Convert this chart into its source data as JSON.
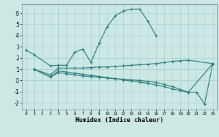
{
  "xlabel": "Humidex (Indice chaleur)",
  "bg_color": "#cce8e5",
  "line_color": "#2a7d7d",
  "grid_color": "#aacfcc",
  "xlim": [
    -0.5,
    23.5
  ],
  "ylim": [
    -2.6,
    6.8
  ],
  "yticks": [
    -2,
    -1,
    0,
    1,
    2,
    3,
    4,
    5,
    6
  ],
  "xticks": [
    0,
    1,
    2,
    3,
    4,
    5,
    6,
    7,
    8,
    9,
    10,
    11,
    12,
    13,
    14,
    15,
    16,
    17,
    18,
    19,
    20,
    21,
    22,
    23
  ],
  "lines": [
    {
      "x": [
        0,
        1,
        3,
        4,
        5,
        6,
        7,
        8,
        9,
        10,
        11,
        12,
        13,
        14,
        15,
        16
      ],
      "y": [
        2.7,
        2.3,
        1.3,
        1.35,
        1.35,
        2.5,
        2.8,
        1.6,
        3.3,
        4.8,
        5.75,
        6.2,
        6.35,
        6.35,
        5.3,
        4.0
      ]
    },
    {
      "x": [
        1,
        3,
        4,
        5,
        6,
        7,
        8,
        9,
        10,
        11,
        12,
        13,
        14,
        15,
        16,
        17,
        18,
        19,
        20,
        23
      ],
      "y": [
        1.0,
        0.5,
        1.1,
        1.1,
        1.1,
        1.1,
        1.15,
        1.2,
        1.2,
        1.25,
        1.3,
        1.35,
        1.4,
        1.45,
        1.5,
        1.6,
        1.7,
        1.75,
        1.8,
        1.5
      ]
    },
    {
      "x": [
        1,
        3,
        4,
        5,
        6,
        7,
        8,
        9,
        10,
        11,
        12,
        13,
        14,
        15,
        16,
        17,
        18,
        19,
        20,
        23
      ],
      "y": [
        1.0,
        0.3,
        0.85,
        0.75,
        0.65,
        0.55,
        0.45,
        0.35,
        0.25,
        0.15,
        0.05,
        -0.05,
        -0.15,
        -0.25,
        -0.4,
        -0.55,
        -0.75,
        -0.9,
        -1.05,
        1.5
      ]
    },
    {
      "x": [
        1,
        3,
        4,
        5,
        6,
        7,
        8,
        9,
        10,
        11,
        12,
        13,
        14,
        15,
        16,
        17,
        18,
        19,
        20,
        21,
        22,
        23
      ],
      "y": [
        1.0,
        0.3,
        0.7,
        0.6,
        0.5,
        0.4,
        0.35,
        0.28,
        0.22,
        0.16,
        0.1,
        0.05,
        0.0,
        -0.08,
        -0.18,
        -0.35,
        -0.55,
        -0.8,
        -1.05,
        -1.05,
        -2.1,
        1.5
      ]
    }
  ]
}
